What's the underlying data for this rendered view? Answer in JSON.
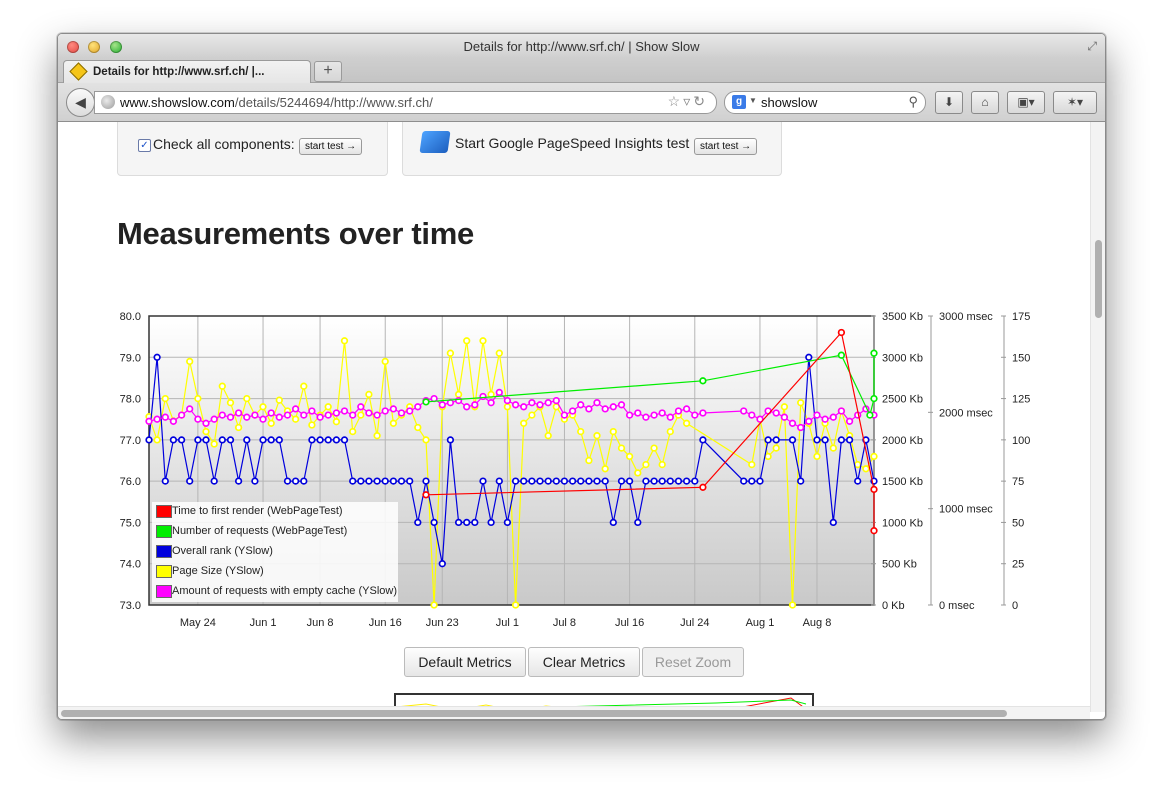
{
  "window": {
    "title": "Details for http://www.srf.ch/ | Show Slow"
  },
  "tab": {
    "label": "Details for http://www.srf.ch/ |..."
  },
  "newtab": {
    "label": "+"
  },
  "address": {
    "domain": "www.showslow.com",
    "path": "/details/5244694/http://www.srf.ch/"
  },
  "search": {
    "value": "showslow"
  },
  "panels": {
    "check_label": "Check all components:",
    "start_test": "start test →",
    "pagespeed_label": "Start Google PageSpeed Insights test"
  },
  "heading": "Measurements over time",
  "buttons": {
    "default": "Default Metrics",
    "clear": "Clear Metrics",
    "reset": "Reset Zoom"
  },
  "colors": {
    "red": "#ff0000",
    "green": "#00ee00",
    "blue": "#0000dd",
    "yellow": "#ffff00",
    "magenta": "#ff00ff"
  },
  "legend": [
    {
      "label": "Time to first render (WebPageTest)",
      "color": "#ff0000"
    },
    {
      "label": "Number of requests (WebPageTest)",
      "color": "#00ee00"
    },
    {
      "label": "Overall rank (YSlow)",
      "color": "#0000dd"
    },
    {
      "label": "Page Size (YSlow)",
      "color": "#ffff00"
    },
    {
      "label": "Amount of requests with empty cache (YSlow)",
      "color": "#ff00ff"
    }
  ],
  "chart_data": {
    "type": "line",
    "x_ticks": [
      "May 24",
      "Jun 1",
      "Jun 8",
      "Jun 16",
      "Jun 23",
      "Jul 1",
      "Jul 8",
      "Jul 16",
      "Jul 24",
      "Aug 1",
      "Aug 8"
    ],
    "x_tick_days": [
      6,
      14,
      21,
      29,
      36,
      44,
      51,
      59,
      67,
      75,
      82
    ],
    "x_range": [
      0,
      89
    ],
    "grid": true,
    "legend_position": "bottom-left",
    "axes": {
      "left": {
        "ticks": [
          "80.0",
          "79.0",
          "78.0",
          "77.0",
          "76.0",
          "75.0",
          "74.0",
          "73.0"
        ],
        "range": [
          73,
          80
        ]
      },
      "size": {
        "ticks": [
          "3500 Kb",
          "3000 Kb",
          "2500 Kb",
          "2000 Kb",
          "1500 Kb",
          "1000 Kb",
          "500 Kb",
          "0 Kb"
        ],
        "range": [
          0,
          3500
        ]
      },
      "msec": {
        "ticks": [
          "3000 msec",
          "2000 msec",
          "1000 msec",
          "0 msec"
        ],
        "range": [
          0,
          3000
        ]
      },
      "count": {
        "ticks": [
          "175",
          "150",
          "125",
          "100",
          "75",
          "50",
          "25",
          "0"
        ],
        "range": [
          0,
          175
        ]
      }
    },
    "series": [
      {
        "name": "Time to first render (WebPageTest)",
        "color": "#ff0000",
        "y_axis": "left",
        "points": [
          [
            34,
            75.67
          ],
          [
            68,
            75.85
          ],
          [
            85,
            79.6
          ],
          [
            89,
            75.8
          ],
          [
            89,
            74.8
          ]
        ]
      },
      {
        "name": "Number of requests (WebPageTest)",
        "color": "#00ee00",
        "y_axis": "left",
        "points": [
          [
            34,
            77.92
          ],
          [
            68,
            78.43
          ],
          [
            85,
            79.05
          ],
          [
            88.5,
            77.6
          ],
          [
            89,
            78.0
          ],
          [
            89,
            79.1
          ]
        ]
      },
      {
        "name": "Overall rank (YSlow)",
        "color": "#0000dd",
        "y_axis": "left",
        "points": [
          [
            0,
            77
          ],
          [
            1,
            79
          ],
          [
            2,
            76
          ],
          [
            3,
            77
          ],
          [
            4,
            77
          ],
          [
            5,
            76
          ],
          [
            6,
            77
          ],
          [
            7,
            77
          ],
          [
            8,
            76
          ],
          [
            9,
            77
          ],
          [
            10,
            77
          ],
          [
            11,
            76
          ],
          [
            12,
            77
          ],
          [
            13,
            76
          ],
          [
            14,
            77
          ],
          [
            15,
            77
          ],
          [
            16,
            77
          ],
          [
            17,
            76
          ],
          [
            18,
            76
          ],
          [
            19,
            76
          ],
          [
            20,
            77
          ],
          [
            21,
            77
          ],
          [
            22,
            77
          ],
          [
            23,
            77
          ],
          [
            24,
            77
          ],
          [
            25,
            76
          ],
          [
            26,
            76
          ],
          [
            27,
            76
          ],
          [
            28,
            76
          ],
          [
            29,
            76
          ],
          [
            30,
            76
          ],
          [
            31,
            76
          ],
          [
            32,
            76
          ],
          [
            33,
            75
          ],
          [
            34,
            76
          ],
          [
            35,
            75
          ],
          [
            36,
            74
          ],
          [
            37,
            77
          ],
          [
            38,
            75
          ],
          [
            39,
            75
          ],
          [
            40,
            75
          ],
          [
            41,
            76
          ],
          [
            42,
            75
          ],
          [
            43,
            76
          ],
          [
            44,
            75
          ],
          [
            45,
            76
          ],
          [
            46,
            76
          ],
          [
            47,
            76
          ],
          [
            48,
            76
          ],
          [
            49,
            76
          ],
          [
            50,
            76
          ],
          [
            51,
            76
          ],
          [
            52,
            76
          ],
          [
            53,
            76
          ],
          [
            54,
            76
          ],
          [
            55,
            76
          ],
          [
            56,
            76
          ],
          [
            57,
            75
          ],
          [
            58,
            76
          ],
          [
            59,
            76
          ],
          [
            60,
            75
          ],
          [
            61,
            76
          ],
          [
            62,
            76
          ],
          [
            63,
            76
          ],
          [
            64,
            76
          ],
          [
            65,
            76
          ],
          [
            66,
            76
          ],
          [
            67,
            76
          ],
          [
            68,
            77
          ],
          [
            73,
            76
          ],
          [
            74,
            76
          ],
          [
            75,
            76
          ],
          [
            76,
            77
          ],
          [
            77,
            77
          ],
          [
            79,
            77
          ],
          [
            80,
            76
          ],
          [
            81,
            79
          ],
          [
            82,
            77
          ],
          [
            83,
            77
          ],
          [
            84,
            75
          ],
          [
            85,
            77
          ],
          [
            86,
            77
          ],
          [
            87,
            76
          ],
          [
            88,
            77
          ],
          [
            89,
            76
          ]
        ]
      },
      {
        "name": "Page Size (YSlow)",
        "color": "#ffff00",
        "y_axis": "size",
        "points": [
          [
            0,
            2280
          ],
          [
            1,
            2000
          ],
          [
            2,
            2500
          ],
          [
            3,
            2230
          ],
          [
            4,
            2300
          ],
          [
            5,
            2950
          ],
          [
            6,
            2500
          ],
          [
            7,
            2100
          ],
          [
            8,
            1950
          ],
          [
            9,
            2650
          ],
          [
            10,
            2450
          ],
          [
            11,
            2150
          ],
          [
            12,
            2500
          ],
          [
            13,
            2300
          ],
          [
            14,
            2400
          ],
          [
            15,
            2200
          ],
          [
            16,
            2480
          ],
          [
            17,
            2350
          ],
          [
            18,
            2250
          ],
          [
            19,
            2650
          ],
          [
            20,
            2180
          ],
          [
            21,
            2300
          ],
          [
            22,
            2400
          ],
          [
            23,
            2220
          ],
          [
            24,
            3200
          ],
          [
            25,
            2100
          ],
          [
            26,
            2300
          ],
          [
            27,
            2550
          ],
          [
            28,
            2050
          ],
          [
            29,
            2950
          ],
          [
            30,
            2200
          ],
          [
            31,
            2300
          ],
          [
            32,
            2400
          ],
          [
            33,
            2150
          ],
          [
            34,
            2000
          ],
          [
            35,
            0
          ],
          [
            36,
            2400
          ],
          [
            37,
            3050
          ],
          [
            38,
            2550
          ],
          [
            39,
            3200
          ],
          [
            40,
            2400
          ],
          [
            41,
            3200
          ],
          [
            42,
            2550
          ],
          [
            43,
            3050
          ],
          [
            44,
            2400
          ],
          [
            45,
            0
          ],
          [
            46,
            2200
          ],
          [
            47,
            2300
          ],
          [
            48,
            2400
          ],
          [
            49,
            2050
          ],
          [
            50,
            2400
          ],
          [
            51,
            2250
          ],
          [
            52,
            2300
          ],
          [
            53,
            2100
          ],
          [
            54,
            1750
          ],
          [
            55,
            2050
          ],
          [
            56,
            1650
          ],
          [
            57,
            2100
          ],
          [
            58,
            1900
          ],
          [
            59,
            1800
          ],
          [
            60,
            1600
          ],
          [
            61,
            1700
          ],
          [
            62,
            1900
          ],
          [
            63,
            1700
          ],
          [
            64,
            2100
          ],
          [
            65,
            2300
          ],
          [
            66,
            2200
          ],
          [
            74,
            1700
          ],
          [
            75,
            2250
          ],
          [
            76,
            1800
          ],
          [
            77,
            1900
          ],
          [
            78,
            2400
          ],
          [
            79,
            0
          ],
          [
            80,
            2450
          ],
          [
            81,
            2200
          ],
          [
            82,
            1800
          ],
          [
            83,
            2200
          ],
          [
            84,
            1900
          ],
          [
            85,
            2350
          ],
          [
            86,
            2050
          ],
          [
            87,
            1700
          ],
          [
            88,
            1650
          ],
          [
            89,
            1800
          ]
        ]
      },
      {
        "name": "Amount of requests with empty cache (YSlow)",
        "color": "#ff00ff",
        "y_axis": "left",
        "points": [
          [
            0,
            77.45
          ],
          [
            1,
            77.5
          ],
          [
            2,
            77.55
          ],
          [
            3,
            77.45
          ],
          [
            4,
            77.6
          ],
          [
            5,
            77.75
          ],
          [
            6,
            77.5
          ],
          [
            7,
            77.4
          ],
          [
            8,
            77.5
          ],
          [
            9,
            77.6
          ],
          [
            10,
            77.55
          ],
          [
            11,
            77.65
          ],
          [
            12,
            77.55
          ],
          [
            13,
            77.6
          ],
          [
            14,
            77.5
          ],
          [
            15,
            77.65
          ],
          [
            16,
            77.55
          ],
          [
            17,
            77.6
          ],
          [
            18,
            77.75
          ],
          [
            19,
            77.6
          ],
          [
            20,
            77.7
          ],
          [
            21,
            77.55
          ],
          [
            22,
            77.6
          ],
          [
            23,
            77.65
          ],
          [
            24,
            77.7
          ],
          [
            25,
            77.6
          ],
          [
            26,
            77.8
          ],
          [
            27,
            77.65
          ],
          [
            28,
            77.6
          ],
          [
            29,
            77.7
          ],
          [
            30,
            77.75
          ],
          [
            31,
            77.65
          ],
          [
            32,
            77.7
          ],
          [
            33,
            77.8
          ],
          [
            34,
            77.95
          ],
          [
            35,
            78.0
          ],
          [
            36,
            77.85
          ],
          [
            37,
            77.9
          ],
          [
            38,
            77.95
          ],
          [
            39,
            77.8
          ],
          [
            40,
            77.85
          ],
          [
            41,
            78.05
          ],
          [
            42,
            77.9
          ],
          [
            43,
            78.15
          ],
          [
            44,
            77.95
          ],
          [
            45,
            77.85
          ],
          [
            46,
            77.8
          ],
          [
            47,
            77.9
          ],
          [
            48,
            77.85
          ],
          [
            49,
            77.9
          ],
          [
            50,
            77.95
          ],
          [
            51,
            77.6
          ],
          [
            52,
            77.7
          ],
          [
            53,
            77.85
          ],
          [
            54,
            77.75
          ],
          [
            55,
            77.9
          ],
          [
            56,
            77.75
          ],
          [
            57,
            77.8
          ],
          [
            58,
            77.85
          ],
          [
            59,
            77.6
          ],
          [
            60,
            77.65
          ],
          [
            61,
            77.55
          ],
          [
            62,
            77.6
          ],
          [
            63,
            77.65
          ],
          [
            64,
            77.55
          ],
          [
            65,
            77.7
          ],
          [
            66,
            77.75
          ],
          [
            67,
            77.6
          ],
          [
            68,
            77.65
          ],
          [
            73,
            77.7
          ],
          [
            74,
            77.6
          ],
          [
            75,
            77.5
          ],
          [
            76,
            77.7
          ],
          [
            77,
            77.65
          ],
          [
            78,
            77.55
          ],
          [
            79,
            77.4
          ],
          [
            80,
            77.3
          ],
          [
            81,
            77.45
          ],
          [
            82,
            77.6
          ],
          [
            83,
            77.5
          ],
          [
            84,
            77.55
          ],
          [
            85,
            77.7
          ],
          [
            86,
            77.45
          ],
          [
            87,
            77.6
          ],
          [
            88,
            77.75
          ],
          [
            89,
            77.6
          ]
        ]
      }
    ]
  }
}
